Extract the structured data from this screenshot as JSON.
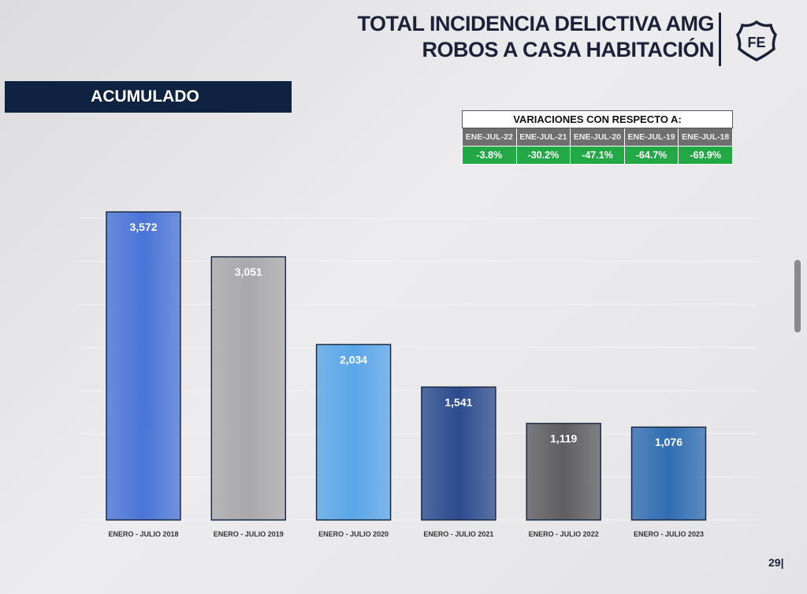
{
  "header": {
    "title_line1": "TOTAL INCIDENCIA DELICTIVA AMG",
    "title_line2": "ROBOS A CASA HABITACIÓN",
    "logo_text": "FE"
  },
  "section_label": "ACUMULADO",
  "variations": {
    "title": "VARIACIONES CON RESPECTO A:",
    "columns": [
      "ENE-JUL-22",
      "ENE-JUL-21",
      "ENE-JUL-20",
      "ENE-JUL-19",
      "ENE-JUL-18"
    ],
    "values": [
      "-3.8%",
      "-30.2%",
      "-47.1%",
      "-64.7%",
      "-69.9%"
    ]
  },
  "chart_data": {
    "type": "bar",
    "title": "",
    "xlabel": "",
    "ylabel": "",
    "ylim": [
      0,
      3572
    ],
    "grid": true,
    "categories": [
      "ENERO - JULIO 2018",
      "ENERO - JULIO 2019",
      "ENERO - JULIO 2020",
      "ENERO - JULIO 2021",
      "ENERO - JULIO 2022",
      "ENERO - JULIO 2023"
    ],
    "values": [
      3572,
      3051,
      2034,
      1541,
      1119,
      1076
    ],
    "labels": [
      "3,572",
      "3,051",
      "2,034",
      "1,541",
      "1,119",
      "1,076"
    ],
    "colors": [
      "#4a74d8",
      "#a9a9ab",
      "#5aa6ea",
      "#2b4b8e",
      "#5e5e60",
      "#2f6db2"
    ]
  },
  "page_number": "29"
}
